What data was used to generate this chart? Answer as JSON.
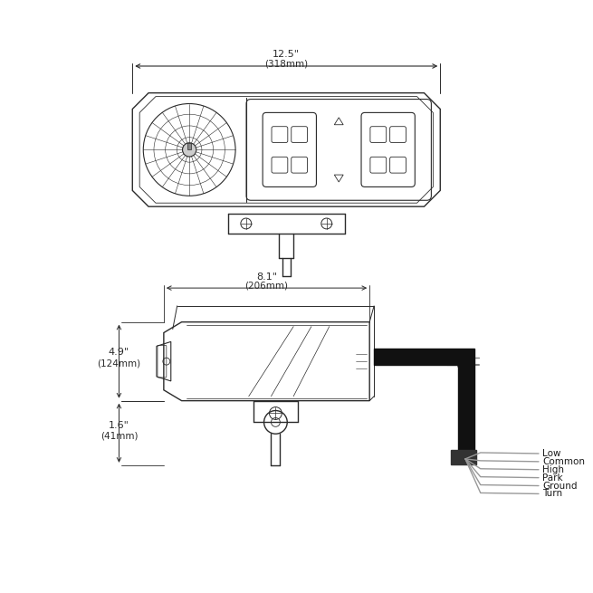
{
  "bg_color": "#ffffff",
  "line_color": "#2a2a2a",
  "dim_color": "#2a2a2a",
  "wire_labels": [
    "Low",
    "Common",
    "High",
    "Park",
    "Ground",
    "Turn"
  ]
}
